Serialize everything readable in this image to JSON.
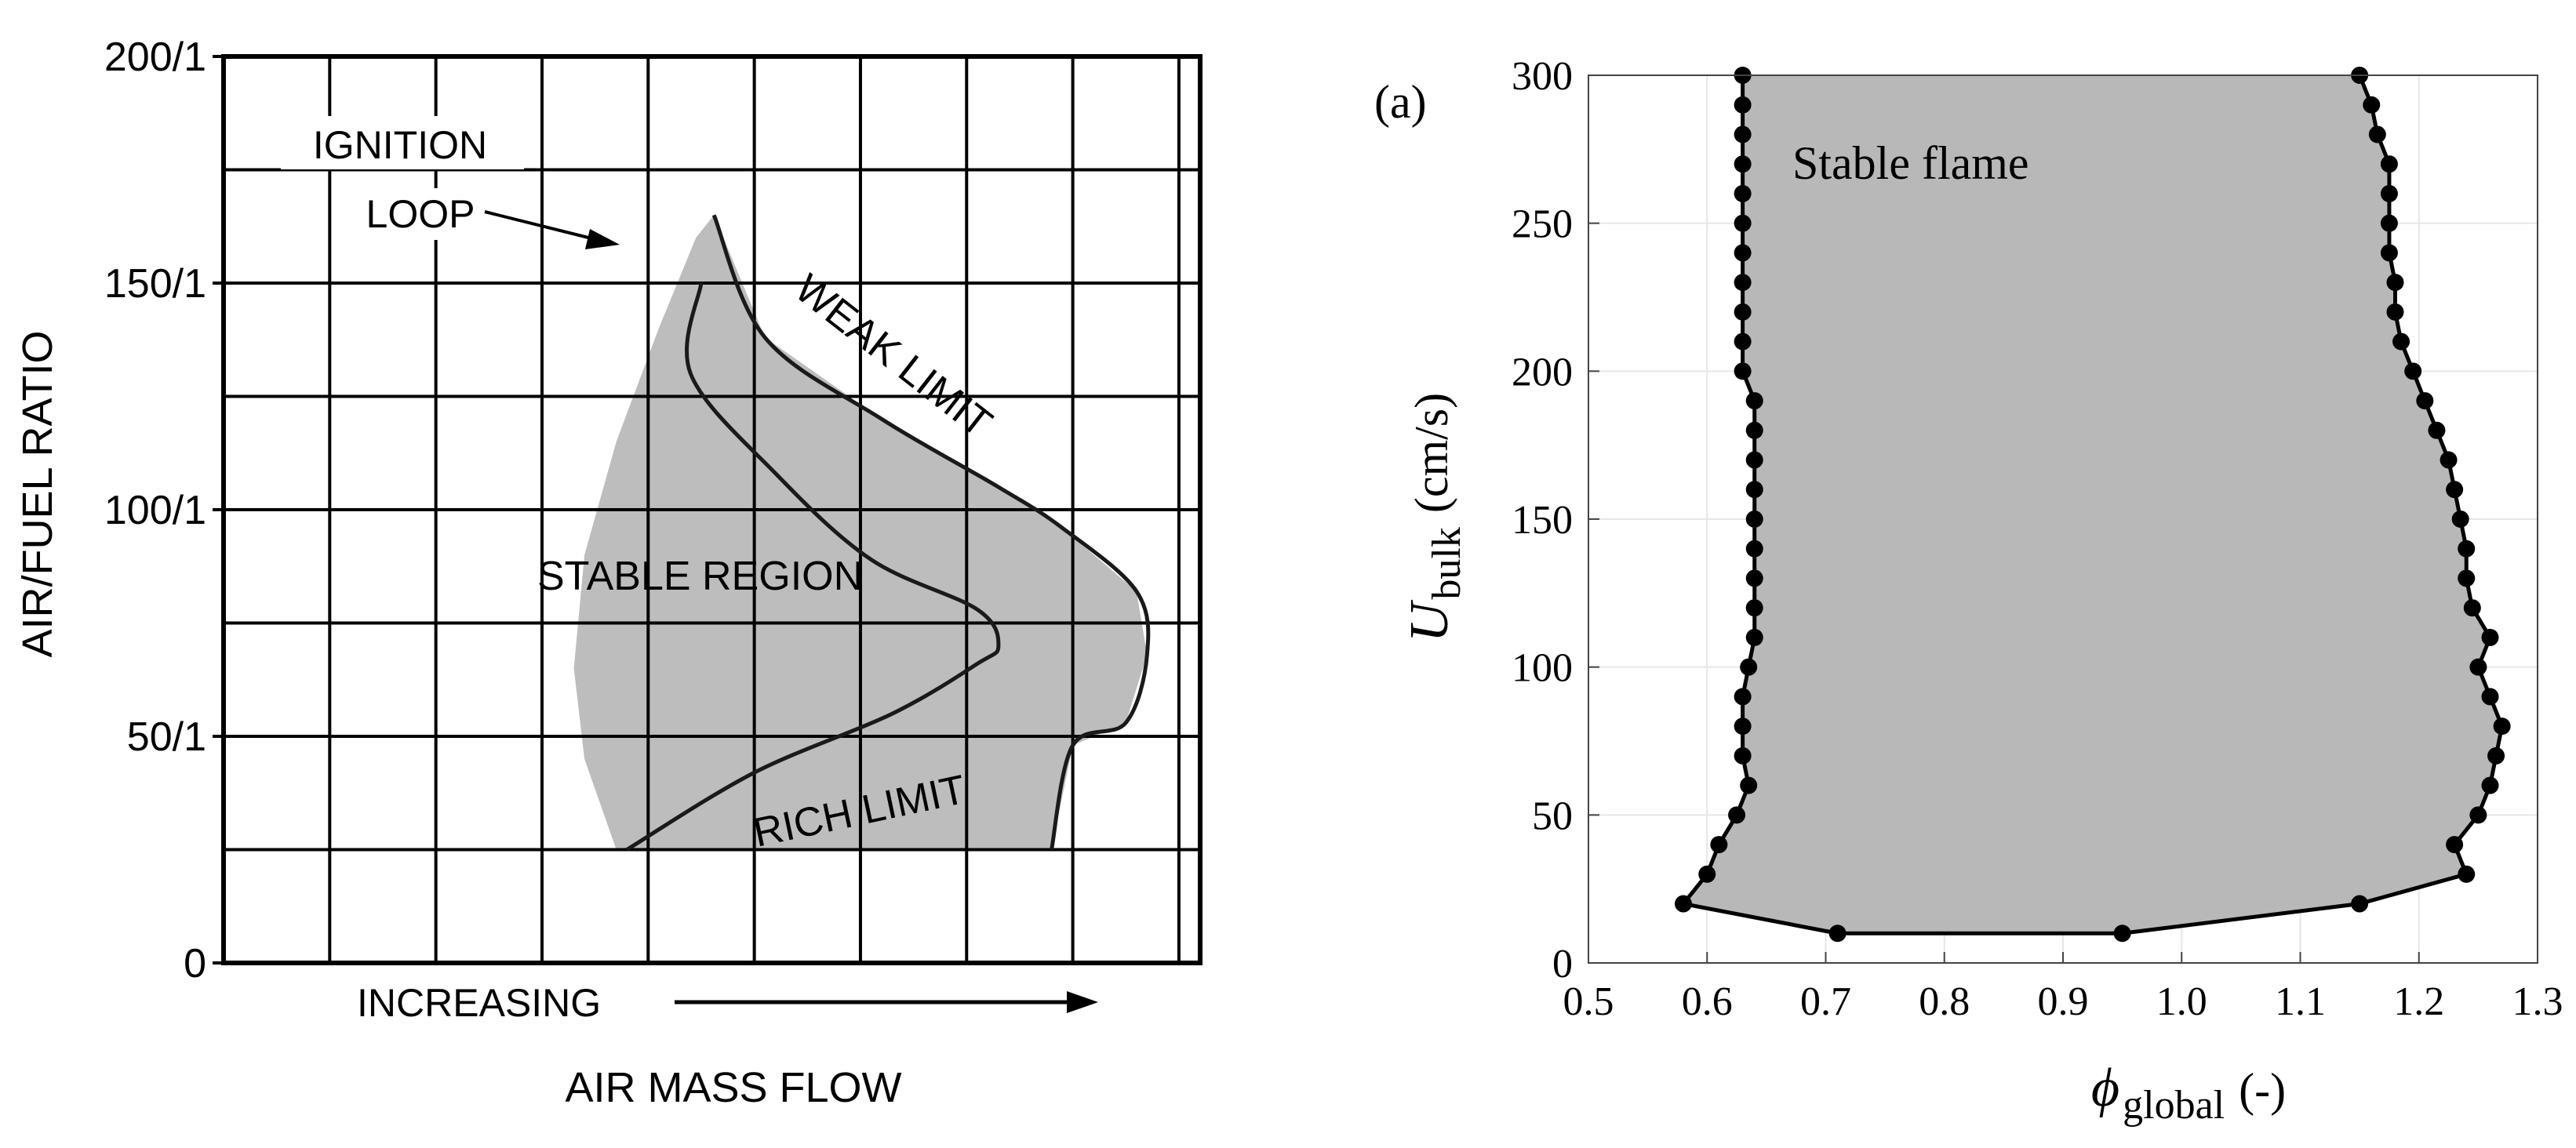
{
  "chart_data": [
    {
      "type": "area",
      "ylabel": "AIR/FUEL RATIO",
      "xlabel": "AIR MASS FLOW",
      "x_arrow_label": "INCREASING",
      "yticks": [
        "0",
        "50/1",
        "100/1",
        "150/1",
        "200/1"
      ],
      "ylim": [
        0,
        200
      ],
      "grid": true,
      "annotations": {
        "ignition_1": "IGNITION",
        "ignition_2": "LOOP",
        "weak": "WEAK LIMIT",
        "rich": "RICH LIMIT",
        "stable": "STABLE REGION"
      },
      "curves": {
        "weak_rich_limit": [
          [
            3.7,
            25
          ],
          [
            3.4,
            45
          ],
          [
            3.3,
            65
          ],
          [
            3.4,
            90
          ],
          [
            3.7,
            115
          ],
          [
            4.1,
            140
          ],
          [
            4.45,
            160
          ],
          [
            4.62,
            165
          ]
        ],
        "stability_limit": [
          [
            7.8,
            25
          ],
          [
            8.0,
            48
          ],
          [
            8.5,
            53
          ],
          [
            8.7,
            68
          ],
          [
            8.6,
            82
          ],
          [
            7.9,
            96
          ],
          [
            7.3,
            105
          ],
          [
            6.2,
            120
          ],
          [
            5.1,
            138
          ],
          [
            4.62,
            165
          ]
        ],
        "ignition_loop": [
          [
            3.8,
            25
          ],
          [
            5.0,
            42
          ],
          [
            6.3,
            55
          ],
          [
            7.1,
            66
          ],
          [
            7.3,
            70
          ],
          [
            7.1,
            78
          ],
          [
            6.1,
            89
          ],
          [
            5.2,
            108
          ],
          [
            4.4,
            130
          ],
          [
            4.5,
            150
          ]
        ]
      },
      "colors": {
        "fill": "#bdbdbd",
        "line": "#1a1a1a"
      }
    },
    {
      "type": "area",
      "panel_label": "(a)",
      "annotation": "Stable flame",
      "xlabel_symbol": "ϕ",
      "xlabel_sub": "global",
      "xlabel_unit": "(-)",
      "ylabel_symbol": "U",
      "ylabel_sub": "bulk",
      "ylabel_unit": "(cm/s)",
      "xlim": [
        0.5,
        1.3
      ],
      "ylim": [
        0,
        300
      ],
      "xticks": [
        "0.5",
        "0.6",
        "0.7",
        "0.8",
        "0.9",
        "1.0",
        "1.1",
        "1.2",
        "1.3"
      ],
      "yticks": [
        "0",
        "50",
        "100",
        "150",
        "200",
        "250",
        "300"
      ],
      "grid": true,
      "series": [
        {
          "values": [
            [
              0.71,
              10
            ],
            [
              0.58,
              20
            ],
            [
              0.6,
              30
            ],
            [
              0.61,
              40
            ],
            [
              0.625,
              50
            ],
            [
              0.635,
              60
            ],
            [
              0.63,
              70
            ],
            [
              0.63,
              80
            ],
            [
              0.63,
              90
            ],
            [
              0.635,
              100
            ],
            [
              0.64,
              110
            ],
            [
              0.64,
              120
            ],
            [
              0.64,
              130
            ],
            [
              0.64,
              140
            ],
            [
              0.64,
              150
            ],
            [
              0.64,
              160
            ],
            [
              0.64,
              170
            ],
            [
              0.64,
              180
            ],
            [
              0.64,
              190
            ],
            [
              0.63,
              200
            ],
            [
              0.63,
              210
            ],
            [
              0.63,
              220
            ],
            [
              0.63,
              230
            ],
            [
              0.63,
              240
            ],
            [
              0.63,
              250
            ],
            [
              0.63,
              260
            ],
            [
              0.63,
              270
            ],
            [
              0.63,
              280
            ],
            [
              0.63,
              290
            ],
            [
              0.63,
              300
            ]
          ]
        },
        {
          "values": [
            [
              0.95,
              10
            ],
            [
              1.15,
              20
            ],
            [
              1.24,
              30
            ],
            [
              1.23,
              40
            ],
            [
              1.25,
              50
            ],
            [
              1.26,
              60
            ],
            [
              1.265,
              70
            ],
            [
              1.27,
              80
            ],
            [
              1.26,
              90
            ],
            [
              1.25,
              100
            ],
            [
              1.26,
              110
            ],
            [
              1.245,
              120
            ],
            [
              1.24,
              130
            ],
            [
              1.24,
              140
            ],
            [
              1.235,
              150
            ],
            [
              1.23,
              160
            ],
            [
              1.225,
              170
            ],
            [
              1.215,
              180
            ],
            [
              1.205,
              190
            ],
            [
              1.195,
              200
            ],
            [
              1.185,
              210
            ],
            [
              1.18,
              220
            ],
            [
              1.18,
              230
            ],
            [
              1.175,
              240
            ],
            [
              1.175,
              250
            ],
            [
              1.175,
              260
            ],
            [
              1.175,
              270
            ],
            [
              1.165,
              280
            ],
            [
              1.16,
              290
            ],
            [
              1.15,
              300
            ]
          ]
        }
      ],
      "colors": {
        "fill": "#b8b8b8",
        "line": "#000000",
        "grid": "#e6e6e6",
        "marker": "#000000"
      }
    }
  ]
}
